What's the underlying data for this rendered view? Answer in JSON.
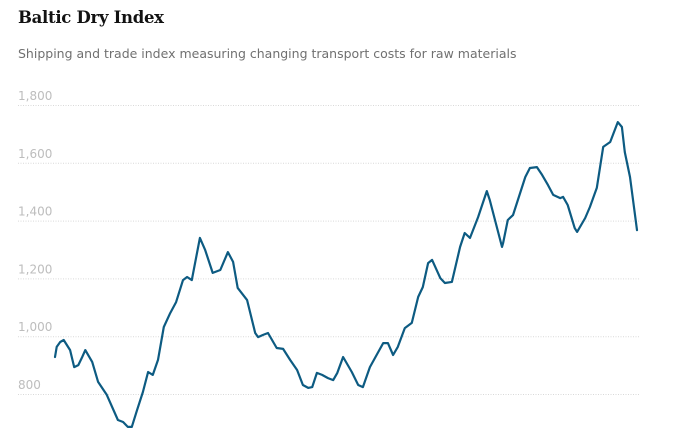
{
  "chart_data": {
    "type": "line",
    "title": "Baltic Dry Index",
    "subtitle": "Shipping and trade index measuring changing transport costs for raw materials",
    "xlabel": "",
    "ylabel": "",
    "x_note": "unlabeled time axis, relative position 0-100",
    "ylim": [
      668,
      1800
    ],
    "yticks": [
      800,
      1000,
      1200,
      1400,
      1600,
      1800
    ],
    "ytick_labels": [
      "800",
      "1,000",
      "1,200",
      "1,400",
      "1,600",
      "1,800"
    ],
    "grid": true,
    "color": "#0d5b82",
    "series": [
      {
        "name": "Baltic Dry Index",
        "x": [
          0,
          0.3,
          0.9,
          1.5,
          2.6,
          3.3,
          4.0,
          4.6,
          5.2,
          6.4,
          7.4,
          8.9,
          10.8,
          11.7,
          12.5,
          13.2,
          14.1,
          15.1,
          16.0,
          16.8,
          17.7,
          18.7,
          19.8,
          20.8,
          22.0,
          22.7,
          23.5,
          24.9,
          25.8,
          27.1,
          28.4,
          29.7,
          30.6,
          31.4,
          33.0,
          34.4,
          34.9,
          35.7,
          36.6,
          38.1,
          39.2,
          40.4,
          41.6,
          42.6,
          43.5,
          44.2,
          45.0,
          45.9,
          46.9,
          47.8,
          48.5,
          49.5,
          51.0,
          52.1,
          52.9,
          54.1,
          56.4,
          57.2,
          58.1,
          58.9,
          60.1,
          61.3,
          62.4,
          63.2,
          64.1,
          64.8,
          66.2,
          67.0,
          68.2,
          69.6,
          70.4,
          71.3,
          72.7,
          74.2,
          74.7,
          76.8,
          77.0,
          77.8,
          78.7,
          80.8,
          81.6,
          82.8,
          83.7,
          84.7,
          85.6,
          86.8,
          87.3,
          88.1,
          89.3,
          89.7,
          91.1,
          91.9,
          93.1,
          94.2,
          95.4,
          96.7,
          97.4,
          97.9,
          98.8,
          100
        ],
        "values": [
          928,
          963,
          980,
          987,
          952,
          893,
          900,
          925,
          952,
          911,
          842,
          797,
          710,
          703,
          686,
          686,
          745,
          807,
          876,
          866,
          918,
          1032,
          1080,
          1118,
          1194,
          1205,
          1194,
          1340,
          1298,
          1219,
          1229,
          1291,
          1257,
          1167,
          1125,
          1011,
          997,
          1004,
          1011,
          959,
          956,
          918,
          883,
          831,
          821,
          824,
          873,
          866,
          855,
          848,
          873,
          928,
          876,
          831,
          824,
          893,
          976,
          976,
          935,
          963,
          1028,
          1046,
          1136,
          1170,
          1253,
          1264,
          1201,
          1184,
          1188,
          1309,
          1357,
          1340,
          1412,
          1502,
          1471,
          1309,
          1322,
          1402,
          1419,
          1551,
          1582,
          1585,
          1558,
          1523,
          1489,
          1478,
          1482,
          1454,
          1374,
          1361,
          1409,
          1447,
          1513,
          1655,
          1672,
          1741,
          1724,
          1637,
          1551,
          1367
        ]
      }
    ]
  }
}
